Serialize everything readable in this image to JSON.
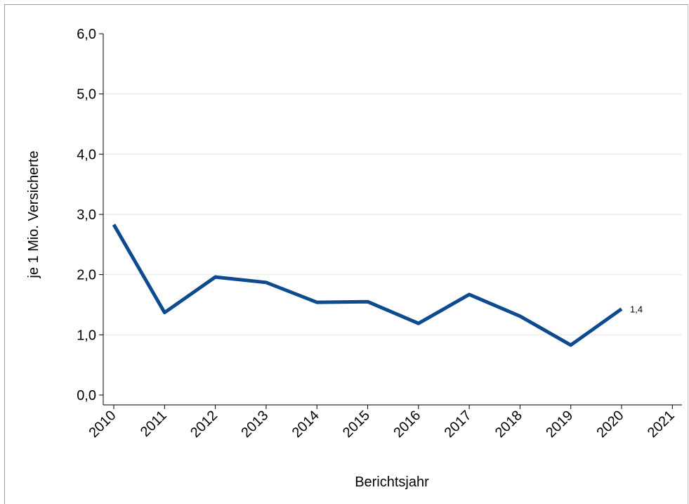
{
  "chart_data": {
    "type": "line",
    "title": "",
    "xlabel": "Berichtsjahr",
    "ylabel": "je 1 Mio. Versicherte",
    "x_ticks": [
      "2010",
      "2011",
      "2012",
      "2013",
      "2014",
      "2015",
      "2016",
      "2017",
      "2018",
      "2019",
      "2020",
      "2021"
    ],
    "y_ticks": [
      "0,0",
      "1,0",
      "2,0",
      "3,0",
      "4,0",
      "5,0",
      "6,0"
    ],
    "ylim": [
      0,
      6
    ],
    "grid": true,
    "series": [
      {
        "x": [
          2010,
          2011,
          2012,
          2013,
          2014,
          2015,
          2016,
          2017,
          2018,
          2019,
          2020
        ],
        "values": [
          2.83,
          1.37,
          1.96,
          1.87,
          1.54,
          1.55,
          1.19,
          1.67,
          1.31,
          0.83,
          1.43
        ],
        "color": "#0d4a8e"
      }
    ],
    "annotations": [
      {
        "x": 2020,
        "y": 1.43,
        "text": "1,4"
      }
    ]
  }
}
